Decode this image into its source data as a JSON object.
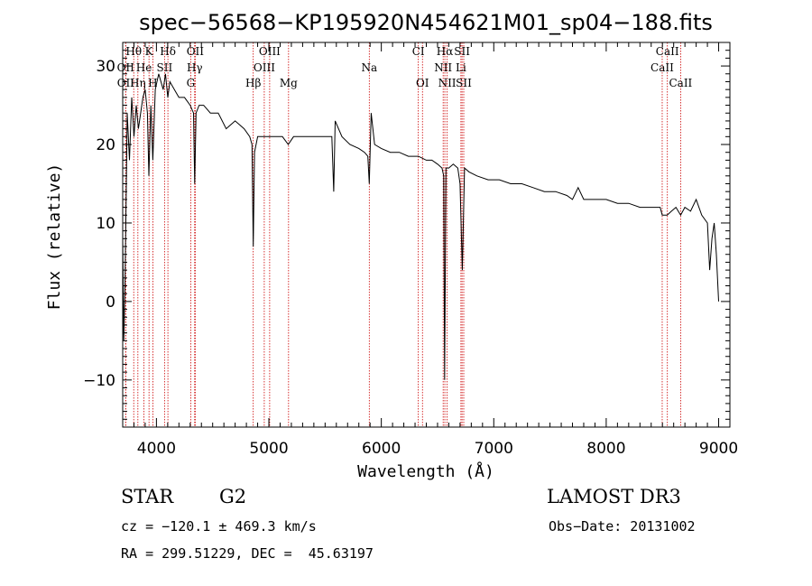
{
  "chart_data": {
    "type": "line",
    "title": "spec−56568−KP195920N454621M01_sp04−188.fits",
    "xlabel": "Wavelength (Å)",
    "ylabel": "Flux (relative)",
    "xlim": [
      3700,
      9100
    ],
    "ylim": [
      -16,
      33
    ],
    "xticks": [
      4000,
      5000,
      6000,
      7000,
      8000,
      9000
    ],
    "yticks": [
      -10,
      0,
      10,
      20,
      30
    ],
    "ytick_labels": [
      "−10",
      "0",
      "10",
      "20",
      "30"
    ],
    "spectrum": {
      "x": [
        3700,
        3710,
        3720,
        3730,
        3740,
        3760,
        3780,
        3800,
        3820,
        3840,
        3860,
        3880,
        3900,
        3920,
        3933,
        3950,
        3968,
        3990,
        4020,
        4060,
        4080,
        4101,
        4120,
        4160,
        4200,
        4250,
        4300,
        4330,
        4340,
        4352,
        4380,
        4420,
        4480,
        4550,
        4620,
        4700,
        4780,
        4830,
        4850,
        4861,
        4872,
        4900,
        4960,
        5010,
        5060,
        5120,
        5172,
        5220,
        5300,
        5400,
        5500,
        5560,
        5577,
        5590,
        5650,
        5720,
        5800,
        5850,
        5880,
        5893,
        5910,
        5940,
        6000,
        6080,
        6160,
        6240,
        6300,
        6330,
        6400,
        6450,
        6500,
        6540,
        6555,
        6563,
        6575,
        6600,
        6640,
        6680,
        6700,
        6720,
        6740,
        6780,
        6850,
        6950,
        7050,
        7150,
        7250,
        7350,
        7450,
        7550,
        7650,
        7700,
        7750,
        7800,
        7900,
        8000,
        8100,
        8200,
        8300,
        8400,
        8480,
        8498,
        8542,
        8580,
        8620,
        8662,
        8700,
        8750,
        8800,
        8850,
        8900,
        8920,
        8940,
        8960,
        8980,
        9000
      ],
      "y": [
        8,
        -5,
        2,
        12,
        24,
        18,
        26,
        21,
        25,
        22,
        24,
        26,
        27,
        24,
        16,
        25,
        18,
        27,
        29,
        27,
        29,
        26,
        28,
        27,
        26,
        26,
        25,
        24,
        15,
        24,
        25,
        25,
        24,
        24,
        22,
        23,
        22,
        21,
        20,
        7,
        19,
        21,
        21,
        21,
        21,
        21,
        20,
        21,
        21,
        21,
        21,
        21,
        14,
        23,
        21,
        20,
        19.5,
        19,
        18.5,
        15,
        24,
        20,
        19.5,
        19,
        19,
        18.5,
        18.5,
        18.5,
        18,
        18,
        17.5,
        17,
        16,
        -10,
        17,
        17,
        17.5,
        17,
        15,
        4,
        17,
        16.5,
        16,
        15.5,
        15.5,
        15,
        15,
        14.5,
        14,
        14,
        13.5,
        13,
        14.5,
        13,
        13,
        13,
        12.5,
        12.5,
        12,
        12,
        12,
        11,
        11,
        11.5,
        12,
        11,
        12,
        11.5,
        13,
        11,
        10,
        4,
        8,
        10,
        6,
        0
      ]
    },
    "lines": [
      {
        "name": "Hθ",
        "wavelength": 3798,
        "row": 0
      },
      {
        "name": "K",
        "wavelength": 3934,
        "row": 0
      },
      {
        "name": "Hδ",
        "wavelength": 4102,
        "row": 0
      },
      {
        "name": "OII",
        "wavelength": 4345,
        "row": 0
      },
      {
        "name": "OIII",
        "wavelength": 5007,
        "row": 0
      },
      {
        "name": "CI",
        "wavelength": 6329,
        "row": 0
      },
      {
        "name": "Hα",
        "wavelength": 6565,
        "row": 0
      },
      {
        "name": "SII",
        "wavelength": 6718,
        "row": 0
      },
      {
        "name": "CaII",
        "wavelength": 8544,
        "row": 0
      },
      {
        "name": "OII",
        "wavelength": 3726,
        "row": 1
      },
      {
        "name": "He",
        "wavelength": 3889,
        "row": 1
      },
      {
        "name": "SII",
        "wavelength": 4072,
        "row": 1
      },
      {
        "name": "Hγ",
        "wavelength": 4340,
        "row": 1
      },
      {
        "name": "OIII",
        "wavelength": 4959,
        "row": 1
      },
      {
        "name": "Na",
        "wavelength": 5893,
        "row": 1
      },
      {
        "name": "NII",
        "wavelength": 6550,
        "row": 1
      },
      {
        "name": "Li",
        "wavelength": 6708,
        "row": 1
      },
      {
        "name": "CaII",
        "wavelength": 8498,
        "row": 1
      },
      {
        "name": "OII",
        "wavelength": 3727,
        "row": 2
      },
      {
        "name": "Hη",
        "wavelength": 3835,
        "row": 2
      },
      {
        "name": "H",
        "wavelength": 3968,
        "row": 2
      },
      {
        "name": "G",
        "wavelength": 4305,
        "row": 2
      },
      {
        "name": "Hβ",
        "wavelength": 4861,
        "row": 2
      },
      {
        "name": "Mg",
        "wavelength": 5175,
        "row": 2
      },
      {
        "name": "OI",
        "wavelength": 6366,
        "row": 2
      },
      {
        "name": "NII",
        "wavelength": 6585,
        "row": 2
      },
      {
        "name": "SII",
        "wavelength": 6733,
        "row": 2
      },
      {
        "name": "CaII",
        "wavelength": 8662,
        "row": 2
      }
    ],
    "colors": {
      "spectrum": "#000000",
      "line_marker": "#cc0000",
      "axis": "#000000"
    }
  },
  "info": {
    "object_type": "STAR",
    "subclass": "G2",
    "survey": "LAMOST DR3",
    "redshift": "cz = −120.1 ± 469.3 km/s",
    "obs_date": "Obs−Date: 20131002",
    "coords": "RA = 299.51229, DEC =  45.63197"
  }
}
